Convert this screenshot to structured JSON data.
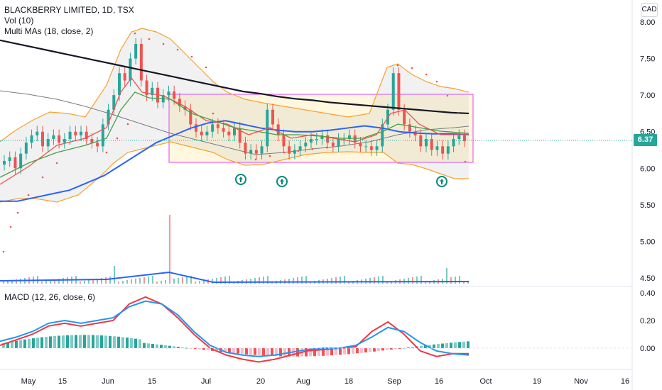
{
  "header": {
    "symbol_title": "BLACKBERRY LIMITED, 1D, TSX",
    "vol_label": "Vol (10)",
    "ma_label": "Multi MAs (18, close, 2)",
    "currency_badge": "CAD"
  },
  "macd_panel": {
    "label": "MACD (12, 26, close, 6)"
  },
  "last_price_tag": "6.37",
  "colors": {
    "up": "#26a69a",
    "down": "#ef5350",
    "box_border": "#e040fb",
    "box_fill": "#fff3c4",
    "bb_band": "#f7a12f",
    "ma200": "#131722",
    "ma_blue": "#2962ff",
    "macd_line": "#2196f3",
    "signal_line": "#f23645",
    "psar": "#ef5350",
    "arrow": "#00897b"
  },
  "chart_data": [
    {
      "type": "line",
      "title": "BLACKBERRY LIMITED, 1D, TSX",
      "ylabel": "CAD",
      "x_ticks": [
        "May",
        "15",
        "Jun",
        "15",
        "Jul",
        "20",
        "Aug",
        "18",
        "Sep",
        "16",
        "Oct",
        "19",
        "Nov",
        "16"
      ],
      "y_ticks": [
        "8.00",
        "7.50",
        "7.00",
        "6.50",
        "6.00",
        "5.50",
        "5.00",
        "4.50"
      ],
      "ylim": [
        4.4,
        8.05
      ],
      "series": [
        {
          "name": "close",
          "values": [
            6.1,
            6.15,
            6.0,
            6.2,
            6.35,
            6.45,
            6.5,
            6.3,
            6.4,
            6.45,
            6.35,
            6.4,
            6.5,
            6.45,
            6.5,
            6.4,
            6.35,
            6.3,
            6.6,
            6.8,
            7.0,
            7.3,
            7.2,
            7.5,
            7.7,
            7.2,
            7.0,
            7.1,
            6.9,
            7.0,
            7.05,
            6.95,
            6.85,
            6.8,
            6.6,
            6.5,
            6.45,
            6.5,
            6.6,
            6.55,
            6.5,
            6.45,
            6.55,
            6.35,
            6.2,
            6.25,
            6.2,
            6.3,
            6.8,
            6.6,
            6.45,
            6.3,
            6.2,
            6.25,
            6.3,
            6.35,
            6.4,
            6.4,
            6.45,
            6.35,
            6.3,
            6.4,
            6.4,
            6.45,
            6.35,
            6.3,
            6.3,
            6.25,
            6.3,
            6.6,
            6.8,
            7.3,
            6.8,
            6.6,
            6.5,
            6.45,
            6.3,
            6.4,
            6.25,
            6.3,
            6.2,
            6.3,
            6.4,
            6.45,
            6.37
          ]
        },
        {
          "name": "ma200",
          "values": [
            7.75,
            7.7,
            7.65,
            7.6,
            7.55,
            7.5,
            7.45,
            7.4,
            7.35,
            7.3,
            7.25,
            7.2,
            7.15,
            7.1,
            7.05,
            7.02,
            6.98,
            6.95,
            6.93,
            6.9,
            6.88,
            6.86,
            6.84,
            6.82,
            6.8,
            6.78,
            6.76,
            6.75
          ]
        },
        {
          "name": "ma_blue",
          "values": [
            5.55,
            5.55,
            5.6,
            5.65,
            5.7,
            5.8,
            5.9,
            6.05,
            6.2,
            6.35,
            6.45,
            6.55,
            6.62,
            6.65,
            6.6,
            6.55,
            6.52,
            6.5,
            6.5,
            6.52,
            6.55,
            6.58,
            6.55,
            6.5,
            6.48,
            6.47,
            6.47,
            6.46
          ]
        }
      ]
    },
    {
      "type": "line",
      "title": "MACD (12, 26, close, 6)",
      "y_ticks": [
        "0.40",
        "0.20",
        "0.00"
      ],
      "ylim": [
        -0.13,
        0.42
      ],
      "series": [
        {
          "name": "macd",
          "values": [
            0.05,
            0.08,
            0.12,
            0.18,
            0.2,
            0.18,
            0.2,
            0.22,
            0.3,
            0.34,
            0.32,
            0.24,
            0.12,
            0.02,
            -0.03,
            -0.05,
            -0.06,
            -0.05,
            -0.03,
            -0.01,
            0.0,
            0.0,
            0.02,
            0.08,
            0.15,
            0.12,
            0.04,
            -0.02,
            -0.04,
            -0.05
          ]
        },
        {
          "name": "signal",
          "values": [
            0.02,
            0.06,
            0.1,
            0.16,
            0.18,
            0.16,
            0.18,
            0.2,
            0.32,
            0.37,
            0.32,
            0.22,
            0.1,
            0.0,
            -0.05,
            -0.08,
            -0.1,
            -0.08,
            -0.05,
            -0.02,
            -0.01,
            0.0,
            0.01,
            0.12,
            0.19,
            0.1,
            -0.02,
            -0.06,
            -0.04,
            -0.04
          ]
        }
      ]
    }
  ]
}
